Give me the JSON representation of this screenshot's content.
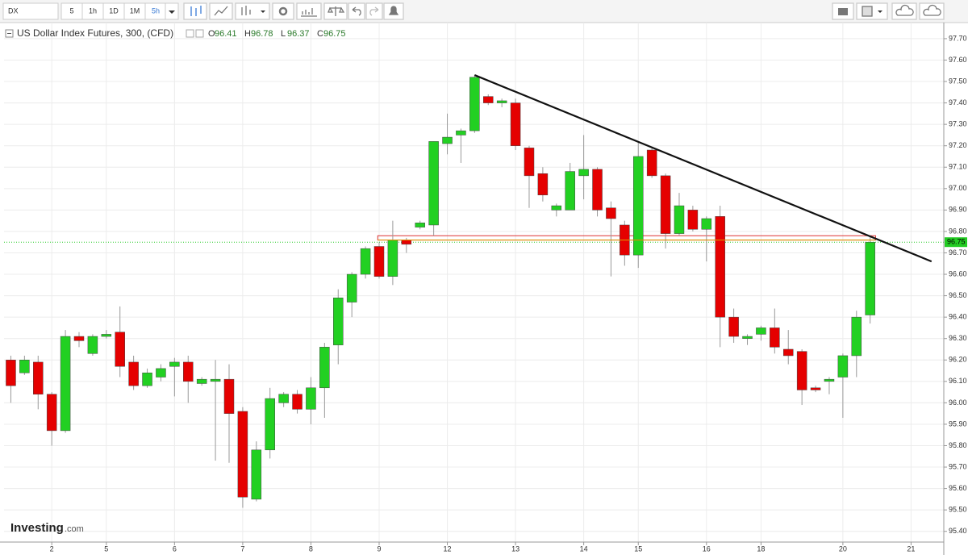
{
  "toolbar": {
    "symbol": "DX",
    "intervals": [
      "5",
      "1h",
      "1D",
      "1M",
      "5h"
    ]
  },
  "chart_data": {
    "type": "candlestick",
    "title": "US Dollar Index Futures, 300, (CFD)",
    "ohlc": [
      {
        "label": "O",
        "value": 96.41
      },
      {
        "label": "H",
        "value": 96.78
      },
      {
        "label": "L",
        "value": 96.37
      },
      {
        "label": "C",
        "value": 96.75
      }
    ],
    "watermark": {
      "brand": "Investing",
      "suffix": ".com"
    },
    "up_color": "#22d022",
    "down_color": "#e50000",
    "open": [
      96.2,
      96.14,
      96.19,
      96.04,
      95.87,
      96.31,
      96.23,
      96.31,
      96.33,
      96.19,
      96.08,
      96.12,
      96.17,
      96.19,
      96.09,
      96.1,
      96.11,
      95.96,
      95.55,
      95.78,
      96.0,
      96.04,
      95.97,
      96.07,
      96.27,
      96.47,
      96.6,
      96.73,
      96.59,
      96.76,
      96.82,
      96.83,
      97.21,
      97.25,
      97.27,
      97.43,
      97.4,
      97.4,
      97.19,
      97.07,
      96.9,
      96.9,
      97.06,
      97.09,
      96.91,
      96.83,
      96.69,
      97.18,
      97.06,
      96.79,
      96.9,
      96.81,
      96.87,
      96.4,
      96.3,
      96.32,
      96.35,
      96.25,
      96.24,
      96.07,
      96.1,
      96.12,
      96.22,
      96.41
    ],
    "high": [
      96.22,
      96.22,
      96.22,
      96.05,
      96.34,
      96.33,
      96.32,
      96.34,
      96.45,
      96.22,
      96.16,
      96.18,
      96.21,
      96.22,
      96.12,
      96.2,
      96.18,
      95.98,
      95.82,
      96.07,
      96.05,
      96.06,
      96.12,
      96.28,
      96.53,
      96.61,
      96.73,
      96.75,
      96.85,
      96.77,
      96.85,
      97.22,
      97.35,
      97.28,
      97.53,
      97.44,
      97.42,
      97.42,
      97.2,
      97.1,
      96.93,
      97.12,
      97.25,
      97.1,
      96.94,
      96.85,
      97.22,
      97.19,
      97.07,
      96.98,
      96.92,
      96.87,
      96.92,
      96.44,
      96.32,
      96.36,
      96.44,
      96.34,
      96.25,
      96.08,
      96.12,
      96.23,
      96.43,
      96.78
    ],
    "low": [
      96.0,
      96.13,
      95.97,
      95.8,
      95.86,
      96.26,
      96.22,
      96.3,
      96.12,
      96.06,
      96.07,
      96.1,
      96.03,
      96.0,
      96.08,
      95.73,
      95.72,
      95.51,
      95.54,
      95.74,
      95.98,
      95.95,
      95.9,
      95.93,
      96.18,
      96.4,
      96.58,
      96.58,
      96.55,
      96.7,
      96.81,
      96.78,
      97.16,
      97.12,
      97.26,
      97.39,
      97.38,
      97.18,
      96.91,
      96.94,
      96.87,
      96.9,
      96.95,
      96.87,
      96.59,
      96.64,
      96.63,
      97.05,
      96.72,
      96.78,
      96.8,
      96.66,
      96.26,
      96.28,
      96.27,
      96.29,
      96.23,
      96.18,
      95.99,
      96.05,
      96.04,
      95.93,
      96.12,
      96.37
    ],
    "close": [
      96.08,
      96.2,
      96.04,
      95.87,
      96.31,
      96.29,
      96.31,
      96.32,
      96.17,
      96.08,
      96.14,
      96.16,
      96.19,
      96.1,
      96.11,
      96.11,
      95.95,
      95.56,
      95.78,
      96.02,
      96.04,
      95.97,
      96.07,
      96.26,
      96.49,
      96.6,
      96.72,
      96.59,
      96.76,
      96.74,
      96.84,
      97.22,
      97.24,
      97.27,
      97.52,
      97.4,
      97.41,
      97.2,
      97.06,
      96.97,
      96.92,
      97.08,
      97.09,
      96.9,
      96.86,
      96.69,
      97.15,
      97.06,
      96.79,
      96.92,
      96.81,
      96.86,
      96.4,
      96.31,
      96.31,
      96.35,
      96.26,
      96.22,
      96.06,
      96.06,
      96.11,
      96.22,
      96.4,
      96.75
    ],
    "last_price": 96.75,
    "trendline": {
      "x": [
        34,
        67.5
      ],
      "y": [
        97.53,
        96.66
      ]
    },
    "zone": {
      "x": [
        26.9,
        63.4
      ],
      "y": [
        96.76,
        96.78
      ]
    },
    "xlim": [
      -0.5,
      68.4
    ],
    "xticks": [
      {
        "value": 3,
        "label": "2"
      },
      {
        "value": 7,
        "label": "5"
      },
      {
        "value": 12,
        "label": "6"
      },
      {
        "value": 17,
        "label": "7"
      },
      {
        "value": 22,
        "label": "8"
      },
      {
        "value": 27,
        "label": "9"
      },
      {
        "value": 32,
        "label": "12"
      },
      {
        "value": 37,
        "label": "13"
      },
      {
        "value": 42,
        "label": "14"
      },
      {
        "value": 46,
        "label": "15"
      },
      {
        "value": 51,
        "label": "16"
      },
      {
        "value": 55,
        "label": "18"
      },
      {
        "value": 61,
        "label": "20"
      },
      {
        "value": 66,
        "label": "21"
      }
    ],
    "ylim": [
      95.35,
      97.775
    ],
    "yticks": [
      {
        "value": 95.4,
        "label": "95.40"
      },
      {
        "value": 95.5,
        "label": "95.50"
      },
      {
        "value": 95.6,
        "label": "95.60"
      },
      {
        "value": 95.7,
        "label": "95.70"
      },
      {
        "value": 95.8,
        "label": "95.80"
      },
      {
        "value": 95.9,
        "label": "95.90"
      },
      {
        "value": 96.0,
        "label": "96.00"
      },
      {
        "value": 96.1,
        "label": "96.10"
      },
      {
        "value": 96.2,
        "label": "96.20"
      },
      {
        "value": 96.3,
        "label": "96.30"
      },
      {
        "value": 96.4,
        "label": "96.40"
      },
      {
        "value": 96.5,
        "label": "96.50"
      },
      {
        "value": 96.6,
        "label": "96.60"
      },
      {
        "value": 96.7,
        "label": "96.70"
      },
      {
        "value": 96.8,
        "label": "96.80"
      },
      {
        "value": 96.9,
        "label": "96.90"
      },
      {
        "value": 97.0,
        "label": "97.00"
      },
      {
        "value": 97.1,
        "label": "97.10"
      },
      {
        "value": 97.2,
        "label": "97.20"
      },
      {
        "value": 97.3,
        "label": "97.30"
      },
      {
        "value": 97.4,
        "label": "97.40"
      },
      {
        "value": 97.5,
        "label": "97.50"
      },
      {
        "value": 97.6,
        "label": "97.60"
      },
      {
        "value": 97.7,
        "label": "97.70"
      }
    ],
    "grid": true
  }
}
